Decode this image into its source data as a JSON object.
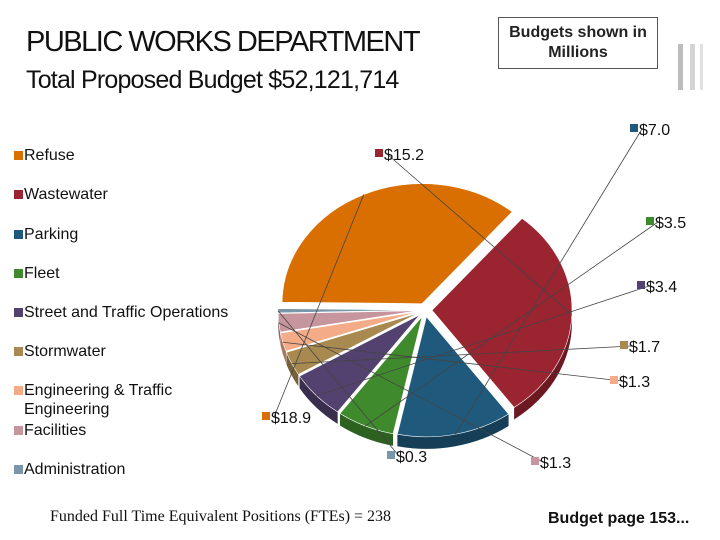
{
  "header": {
    "title": "PUBLIC WORKS DEPARTMENT",
    "subtitle": "Total Proposed Budget  $52,121,714"
  },
  "note": "Budgets shown in Millions",
  "footer": {
    "ftes": "Funded Full Time Equivalent Positions (FTEs) = 238",
    "page_ref": "Budget page 153..."
  },
  "chart_data": {
    "type": "pie",
    "title": "",
    "legend_position": "left",
    "slices": [
      {
        "name": "Refuse",
        "value": 18.9,
        "label": "$18.9",
        "color": "#d96f00"
      },
      {
        "name": "Wastewater",
        "value": 15.2,
        "label": "$15.2",
        "color": "#9b2431"
      },
      {
        "name": "Parking",
        "value": 7.0,
        "label": "$7.0",
        "color": "#1f5a7c"
      },
      {
        "name": "Fleet",
        "value": 3.5,
        "label": "$3.5",
        "color": "#3f8a2c"
      },
      {
        "name": "Street and Traffic Operations",
        "value": 3.4,
        "label": "$3.4",
        "color": "#53416f"
      },
      {
        "name": "Stormwater",
        "value": 1.7,
        "label": "$1.7",
        "color": "#a88a50"
      },
      {
        "name": "Engineering & Traffic Engineering",
        "value": 1.3,
        "label": "$1.3",
        "color": "#f4ab87"
      },
      {
        "name": "Facilities",
        "value": 1.3,
        "label": "$1.3",
        "color": "#c6959d"
      },
      {
        "name": "Administration",
        "value": 0.3,
        "label": "$0.3",
        "color": "#7a96aa"
      }
    ]
  }
}
